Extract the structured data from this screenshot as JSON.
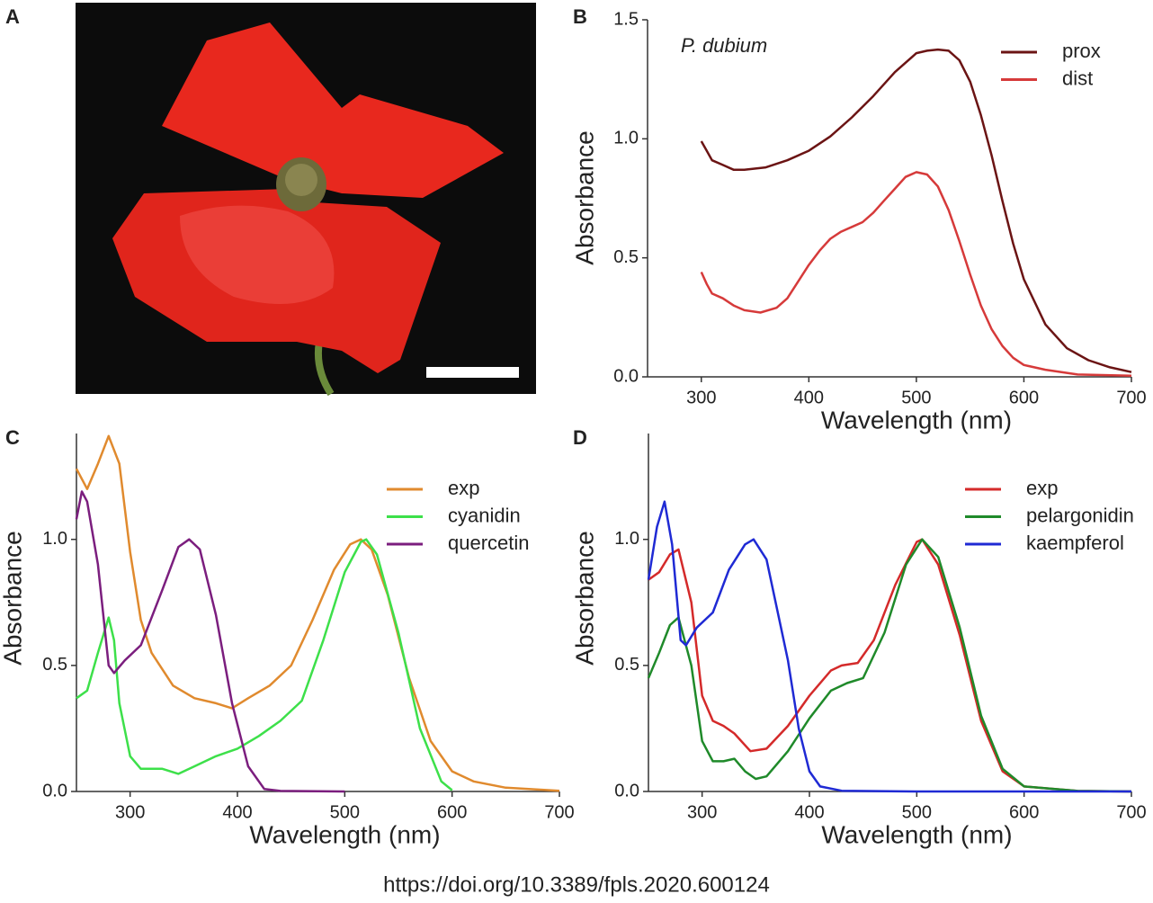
{
  "photo_label": "A",
  "source": "https://doi.org/10.3389/fpls.2020.600124",
  "chart_data": [
    {
      "type": "line",
      "panel": "B",
      "annotation": "P. dubium",
      "xlabel": "Wavelength (nm)",
      "ylabel": "Absorbance",
      "xlim": [
        250,
        700
      ],
      "xticks": [
        300,
        400,
        500,
        600,
        700
      ],
      "ylim": [
        0,
        1.5
      ],
      "yticks": [
        {
          "value": 0,
          "label": "0.0"
        },
        0.5,
        {
          "value": 1,
          "label": "1.0"
        },
        1.5
      ],
      "legend": "upper right",
      "series": [
        {
          "name": "prox",
          "color": "#6b1414",
          "x": [
            300,
            305,
            310,
            320,
            330,
            340,
            360,
            380,
            400,
            420,
            440,
            460,
            480,
            500,
            510,
            520,
            530,
            540,
            550,
            560,
            570,
            580,
            590,
            600,
            620,
            640,
            660,
            680,
            700
          ],
          "values": [
            0.99,
            0.95,
            0.91,
            0.89,
            0.87,
            0.87,
            0.88,
            0.91,
            0.95,
            1.01,
            1.09,
            1.18,
            1.28,
            1.36,
            1.37,
            1.375,
            1.37,
            1.33,
            1.24,
            1.1,
            0.93,
            0.74,
            0.56,
            0.41,
            0.22,
            0.12,
            0.07,
            0.04,
            0.02
          ]
        },
        {
          "name": "dist",
          "color": "#d63a3a",
          "x": [
            300,
            305,
            310,
            320,
            330,
            340,
            355,
            370,
            380,
            390,
            400,
            410,
            420,
            430,
            440,
            450,
            460,
            470,
            480,
            490,
            500,
            510,
            520,
            530,
            540,
            550,
            560,
            570,
            580,
            590,
            600,
            620,
            650,
            700
          ],
          "values": [
            0.44,
            0.39,
            0.35,
            0.33,
            0.3,
            0.28,
            0.27,
            0.29,
            0.33,
            0.4,
            0.47,
            0.53,
            0.58,
            0.61,
            0.63,
            0.65,
            0.69,
            0.74,
            0.79,
            0.84,
            0.86,
            0.85,
            0.8,
            0.7,
            0.57,
            0.43,
            0.3,
            0.2,
            0.13,
            0.08,
            0.05,
            0.03,
            0.01,
            0.005
          ]
        }
      ]
    },
    {
      "type": "line",
      "panel": "C",
      "xlabel": "Wavelength (nm)",
      "ylabel": "Absorbance",
      "xlim": [
        250,
        700
      ],
      "xticks": [
        300,
        400,
        500,
        600,
        700
      ],
      "ylim": [
        0,
        1.42
      ],
      "yticks": [
        {
          "value": 0,
          "label": "0.0"
        },
        0.5,
        {
          "value": 1,
          "label": "1.0"
        }
      ],
      "legend": "upper right",
      "series": [
        {
          "name": "exp",
          "color": "#e08a2e",
          "x": [
            250,
            260,
            270,
            280,
            290,
            300,
            310,
            320,
            340,
            360,
            380,
            395,
            410,
            430,
            450,
            470,
            490,
            505,
            515,
            525,
            540,
            560,
            580,
            600,
            620,
            650,
            700
          ],
          "values": [
            1.28,
            1.2,
            1.3,
            1.41,
            1.3,
            0.95,
            0.68,
            0.55,
            0.42,
            0.37,
            0.35,
            0.33,
            0.37,
            0.42,
            0.5,
            0.68,
            0.88,
            0.98,
            1.0,
            0.96,
            0.78,
            0.45,
            0.2,
            0.08,
            0.04,
            0.015,
            0.003
          ]
        },
        {
          "name": "cyanidin",
          "color": "#3de04a",
          "x": [
            250,
            260,
            270,
            280,
            285,
            290,
            300,
            310,
            330,
            345,
            360,
            380,
            400,
            420,
            440,
            460,
            480,
            500,
            515,
            520,
            530,
            550,
            570,
            590,
            600
          ],
          "values": [
            0.37,
            0.4,
            0.55,
            0.69,
            0.6,
            0.35,
            0.14,
            0.09,
            0.09,
            0.07,
            0.1,
            0.14,
            0.17,
            0.22,
            0.28,
            0.36,
            0.6,
            0.87,
            0.99,
            1.0,
            0.94,
            0.63,
            0.25,
            0.04,
            0.005
          ]
        },
        {
          "name": "quercetin",
          "color": "#7b1e7e",
          "x": [
            250,
            255,
            260,
            270,
            280,
            285,
            295,
            310,
            330,
            345,
            355,
            365,
            380,
            395,
            410,
            425,
            440,
            500
          ],
          "values": [
            1.08,
            1.19,
            1.15,
            0.9,
            0.5,
            0.47,
            0.52,
            0.58,
            0.8,
            0.97,
            1.0,
            0.96,
            0.7,
            0.35,
            0.1,
            0.01,
            0.002,
            0
          ]
        }
      ]
    },
    {
      "type": "line",
      "panel": "D",
      "xlabel": "Wavelength (nm)",
      "ylabel": "Absorbance",
      "xlim": [
        250,
        700
      ],
      "xticks": [
        300,
        400,
        500,
        600,
        700
      ],
      "ylim": [
        0,
        1.42
      ],
      "yticks": [
        {
          "value": 0,
          "label": "0.0"
        },
        0.5,
        {
          "value": 1,
          "label": "1.0"
        }
      ],
      "legend": "upper right",
      "series": [
        {
          "name": "exp",
          "color": "#d42a2a",
          "x": [
            250,
            260,
            270,
            278,
            290,
            300,
            310,
            320,
            330,
            345,
            360,
            380,
            400,
            420,
            430,
            445,
            460,
            480,
            500,
            505,
            520,
            540,
            560,
            580,
            600,
            650,
            700
          ],
          "values": [
            0.84,
            0.87,
            0.94,
            0.96,
            0.75,
            0.38,
            0.28,
            0.26,
            0.23,
            0.16,
            0.17,
            0.26,
            0.38,
            0.48,
            0.5,
            0.51,
            0.6,
            0.82,
            0.99,
            1.0,
            0.9,
            0.62,
            0.28,
            0.08,
            0.02,
            0.002,
            0
          ]
        },
        {
          "name": "pelargonidin",
          "color": "#1f8a2a",
          "x": [
            250,
            260,
            270,
            278,
            290,
            300,
            310,
            320,
            330,
            340,
            350,
            360,
            380,
            400,
            420,
            435,
            450,
            470,
            490,
            505,
            520,
            540,
            560,
            580,
            600,
            650,
            700
          ],
          "values": [
            0.45,
            0.55,
            0.66,
            0.69,
            0.5,
            0.2,
            0.12,
            0.12,
            0.13,
            0.08,
            0.05,
            0.06,
            0.16,
            0.29,
            0.4,
            0.43,
            0.45,
            0.63,
            0.9,
            1.0,
            0.93,
            0.65,
            0.3,
            0.09,
            0.02,
            0.002,
            0
          ]
        },
        {
          "name": "kaempferol",
          "color": "#1f2ad4",
          "x": [
            250,
            258,
            265,
            272,
            280,
            285,
            295,
            310,
            325,
            340,
            348,
            360,
            380,
            390,
            400,
            410,
            430,
            500,
            700
          ],
          "values": [
            0.84,
            1.05,
            1.15,
            0.98,
            0.6,
            0.58,
            0.65,
            0.71,
            0.88,
            0.98,
            1.0,
            0.92,
            0.52,
            0.25,
            0.08,
            0.02,
            0.003,
            0,
            0
          ]
        }
      ]
    }
  ]
}
